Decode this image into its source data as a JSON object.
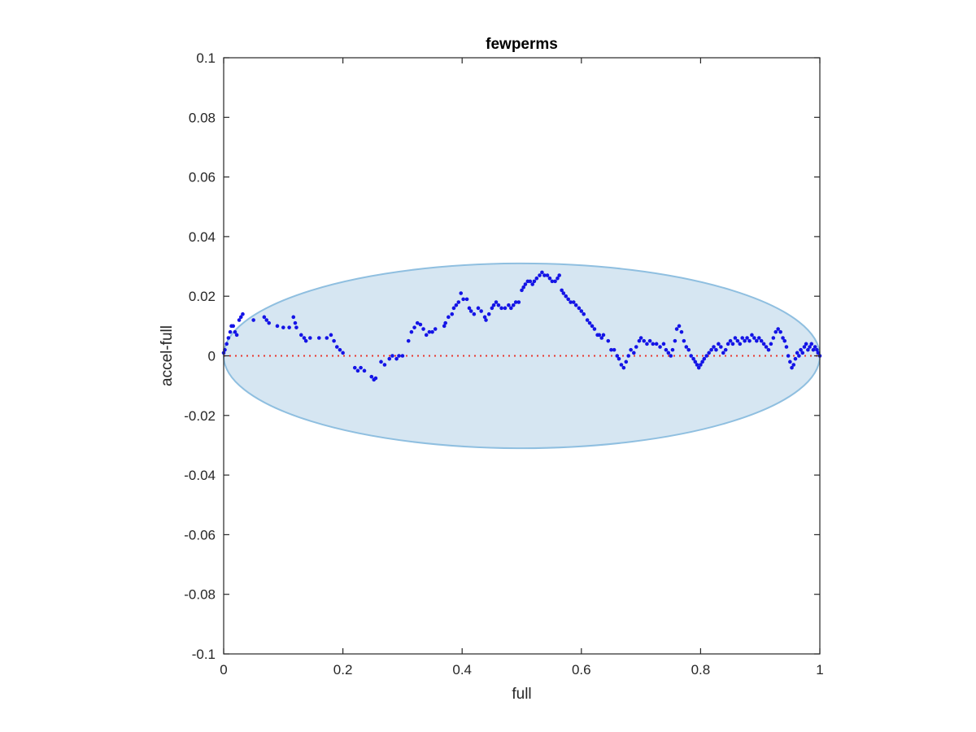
{
  "chart_data": {
    "type": "scatter",
    "title": "fewperms",
    "xlabel": "full",
    "ylabel": "accel-full",
    "xlim": [
      0,
      1
    ],
    "ylim": [
      -0.1,
      0.1
    ],
    "xticks": [
      0,
      0.2,
      0.4,
      0.6,
      0.8,
      1
    ],
    "xtick_labels": [
      "0",
      "0.2",
      "0.4",
      "0.6",
      "0.8",
      "1"
    ],
    "yticks": [
      -0.1,
      -0.08,
      -0.06,
      -0.04,
      -0.02,
      0,
      0.02,
      0.04,
      0.06,
      0.08,
      0.1
    ],
    "ytick_labels": [
      "-0.1",
      "-0.08",
      "-0.06",
      "-0.04",
      "-0.02",
      "0",
      "0.02",
      "0.04",
      "0.06",
      "0.08",
      "0.1"
    ],
    "grid": false,
    "ellipse": {
      "center": [
        0.5,
        0
      ],
      "semi_axes": [
        0.5,
        0.031
      ],
      "fill": "#d6e6f2",
      "stroke": "#8fbfe0"
    },
    "reference_line": {
      "y": 0,
      "style": "dotted",
      "color": "#e8372e"
    },
    "series": [
      {
        "color": "#1414e6",
        "points": [
          [
            0.0,
            0.001
          ],
          [
            0.002,
            0.002
          ],
          [
            0.005,
            0.004
          ],
          [
            0.008,
            0.006
          ],
          [
            0.011,
            0.008
          ],
          [
            0.013,
            0.01
          ],
          [
            0.016,
            0.01
          ],
          [
            0.019,
            0.008
          ],
          [
            0.022,
            0.007
          ],
          [
            0.026,
            0.012
          ],
          [
            0.029,
            0.013
          ],
          [
            0.032,
            0.014
          ],
          [
            0.05,
            0.012
          ],
          [
            0.068,
            0.013
          ],
          [
            0.072,
            0.012
          ],
          [
            0.076,
            0.011
          ],
          [
            0.09,
            0.01
          ],
          [
            0.1,
            0.0095
          ],
          [
            0.11,
            0.0095
          ],
          [
            0.117,
            0.013
          ],
          [
            0.12,
            0.011
          ],
          [
            0.122,
            0.0095
          ],
          [
            0.13,
            0.007
          ],
          [
            0.135,
            0.006
          ],
          [
            0.138,
            0.005
          ],
          [
            0.145,
            0.006
          ],
          [
            0.16,
            0.006
          ],
          [
            0.173,
            0.006
          ],
          [
            0.18,
            0.007
          ],
          [
            0.185,
            0.005
          ],
          [
            0.19,
            0.003
          ],
          [
            0.195,
            0.002
          ],
          [
            0.2,
            0.001
          ],
          [
            0.22,
            -0.004
          ],
          [
            0.225,
            -0.005
          ],
          [
            0.23,
            -0.004
          ],
          [
            0.236,
            -0.005
          ],
          [
            0.248,
            -0.007
          ],
          [
            0.252,
            -0.008
          ],
          [
            0.255,
            -0.0075
          ],
          [
            0.264,
            -0.002
          ],
          [
            0.27,
            -0.003
          ],
          [
            0.278,
            -0.001
          ],
          [
            0.283,
            0.0
          ],
          [
            0.29,
            -0.001
          ],
          [
            0.294,
            0.0
          ],
          [
            0.3,
            0.0
          ],
          [
            0.31,
            0.005
          ],
          [
            0.315,
            0.008
          ],
          [
            0.32,
            0.0095
          ],
          [
            0.325,
            0.011
          ],
          [
            0.33,
            0.0105
          ],
          [
            0.335,
            0.009
          ],
          [
            0.34,
            0.007
          ],
          [
            0.345,
            0.008
          ],
          [
            0.35,
            0.008
          ],
          [
            0.355,
            0.009
          ],
          [
            0.37,
            0.01
          ],
          [
            0.372,
            0.011
          ],
          [
            0.377,
            0.013
          ],
          [
            0.383,
            0.014
          ],
          [
            0.386,
            0.016
          ],
          [
            0.39,
            0.017
          ],
          [
            0.394,
            0.018
          ],
          [
            0.398,
            0.021
          ],
          [
            0.402,
            0.019
          ],
          [
            0.408,
            0.019
          ],
          [
            0.412,
            0.016
          ],
          [
            0.415,
            0.015
          ],
          [
            0.42,
            0.014
          ],
          [
            0.427,
            0.016
          ],
          [
            0.432,
            0.015
          ],
          [
            0.438,
            0.013
          ],
          [
            0.44,
            0.012
          ],
          [
            0.445,
            0.014
          ],
          [
            0.45,
            0.016
          ],
          [
            0.453,
            0.017
          ],
          [
            0.457,
            0.018
          ],
          [
            0.461,
            0.017
          ],
          [
            0.466,
            0.016
          ],
          [
            0.472,
            0.016
          ],
          [
            0.478,
            0.017
          ],
          [
            0.482,
            0.016
          ],
          [
            0.486,
            0.017
          ],
          [
            0.49,
            0.018
          ],
          [
            0.495,
            0.018
          ],
          [
            0.5,
            0.022
          ],
          [
            0.503,
            0.023
          ],
          [
            0.506,
            0.024
          ],
          [
            0.51,
            0.025
          ],
          [
            0.514,
            0.025
          ],
          [
            0.518,
            0.024
          ],
          [
            0.521,
            0.025
          ],
          [
            0.525,
            0.026
          ],
          [
            0.53,
            0.027
          ],
          [
            0.534,
            0.028
          ],
          [
            0.538,
            0.027
          ],
          [
            0.543,
            0.027
          ],
          [
            0.547,
            0.026
          ],
          [
            0.551,
            0.025
          ],
          [
            0.556,
            0.025
          ],
          [
            0.56,
            0.026
          ],
          [
            0.563,
            0.027
          ],
          [
            0.567,
            0.022
          ],
          [
            0.57,
            0.021
          ],
          [
            0.574,
            0.02
          ],
          [
            0.578,
            0.019
          ],
          [
            0.582,
            0.018
          ],
          [
            0.587,
            0.018
          ],
          [
            0.591,
            0.017
          ],
          [
            0.596,
            0.016
          ],
          [
            0.6,
            0.015
          ],
          [
            0.604,
            0.014
          ],
          [
            0.61,
            0.012
          ],
          [
            0.614,
            0.011
          ],
          [
            0.618,
            0.01
          ],
          [
            0.622,
            0.009
          ],
          [
            0.627,
            0.007
          ],
          [
            0.63,
            0.007
          ],
          [
            0.634,
            0.006
          ],
          [
            0.637,
            0.007
          ],
          [
            0.645,
            0.005
          ],
          [
            0.65,
            0.002
          ],
          [
            0.655,
            0.002
          ],
          [
            0.66,
            0.0
          ],
          [
            0.663,
            -0.001
          ],
          [
            0.667,
            -0.003
          ],
          [
            0.671,
            -0.004
          ],
          [
            0.675,
            -0.002
          ],
          [
            0.679,
            0.0
          ],
          [
            0.683,
            0.002
          ],
          [
            0.688,
            0.001
          ],
          [
            0.692,
            0.003
          ],
          [
            0.697,
            0.005
          ],
          [
            0.7,
            0.006
          ],
          [
            0.705,
            0.005
          ],
          [
            0.71,
            0.004
          ],
          [
            0.715,
            0.005
          ],
          [
            0.72,
            0.004
          ],
          [
            0.726,
            0.004
          ],
          [
            0.732,
            0.003
          ],
          [
            0.738,
            0.004
          ],
          [
            0.742,
            0.002
          ],
          [
            0.746,
            0.001
          ],
          [
            0.75,
            0.0
          ],
          [
            0.753,
            0.002
          ],
          [
            0.757,
            0.005
          ],
          [
            0.76,
            0.009
          ],
          [
            0.764,
            0.01
          ],
          [
            0.768,
            0.008
          ],
          [
            0.772,
            0.005
          ],
          [
            0.776,
            0.003
          ],
          [
            0.78,
            0.002
          ],
          [
            0.784,
            0.0
          ],
          [
            0.788,
            -0.001
          ],
          [
            0.791,
            -0.002
          ],
          [
            0.794,
            -0.003
          ],
          [
            0.797,
            -0.004
          ],
          [
            0.8,
            -0.003
          ],
          [
            0.803,
            -0.002
          ],
          [
            0.806,
            -0.001
          ],
          [
            0.81,
            0.0
          ],
          [
            0.814,
            0.001
          ],
          [
            0.818,
            0.002
          ],
          [
            0.822,
            0.003
          ],
          [
            0.826,
            0.002
          ],
          [
            0.83,
            0.004
          ],
          [
            0.834,
            0.003
          ],
          [
            0.838,
            0.001
          ],
          [
            0.842,
            0.002
          ],
          [
            0.846,
            0.004
          ],
          [
            0.85,
            0.005
          ],
          [
            0.854,
            0.004
          ],
          [
            0.858,
            0.006
          ],
          [
            0.862,
            0.005
          ],
          [
            0.866,
            0.004
          ],
          [
            0.87,
            0.006
          ],
          [
            0.874,
            0.005
          ],
          [
            0.878,
            0.006
          ],
          [
            0.882,
            0.005
          ],
          [
            0.886,
            0.007
          ],
          [
            0.89,
            0.006
          ],
          [
            0.894,
            0.005
          ],
          [
            0.898,
            0.006
          ],
          [
            0.902,
            0.005
          ],
          [
            0.906,
            0.004
          ],
          [
            0.91,
            0.003
          ],
          [
            0.914,
            0.002
          ],
          [
            0.918,
            0.004
          ],
          [
            0.922,
            0.006
          ],
          [
            0.926,
            0.008
          ],
          [
            0.93,
            0.009
          ],
          [
            0.934,
            0.008
          ],
          [
            0.938,
            0.006
          ],
          [
            0.941,
            0.005
          ],
          [
            0.944,
            0.003
          ],
          [
            0.947,
            0.0
          ],
          [
            0.95,
            -0.002
          ],
          [
            0.953,
            -0.004
          ],
          [
            0.956,
            -0.003
          ],
          [
            0.959,
            -0.001
          ],
          [
            0.962,
            0.001
          ],
          [
            0.965,
            0.0
          ],
          [
            0.968,
            0.002
          ],
          [
            0.971,
            0.001
          ],
          [
            0.974,
            0.003
          ],
          [
            0.977,
            0.004
          ],
          [
            0.98,
            0.002
          ],
          [
            0.983,
            0.003
          ],
          [
            0.986,
            0.004
          ],
          [
            0.989,
            0.002
          ],
          [
            0.992,
            0.003
          ],
          [
            0.995,
            0.002
          ],
          [
            0.997,
            0.001
          ],
          [
            1.0,
            0.0
          ]
        ]
      }
    ]
  }
}
